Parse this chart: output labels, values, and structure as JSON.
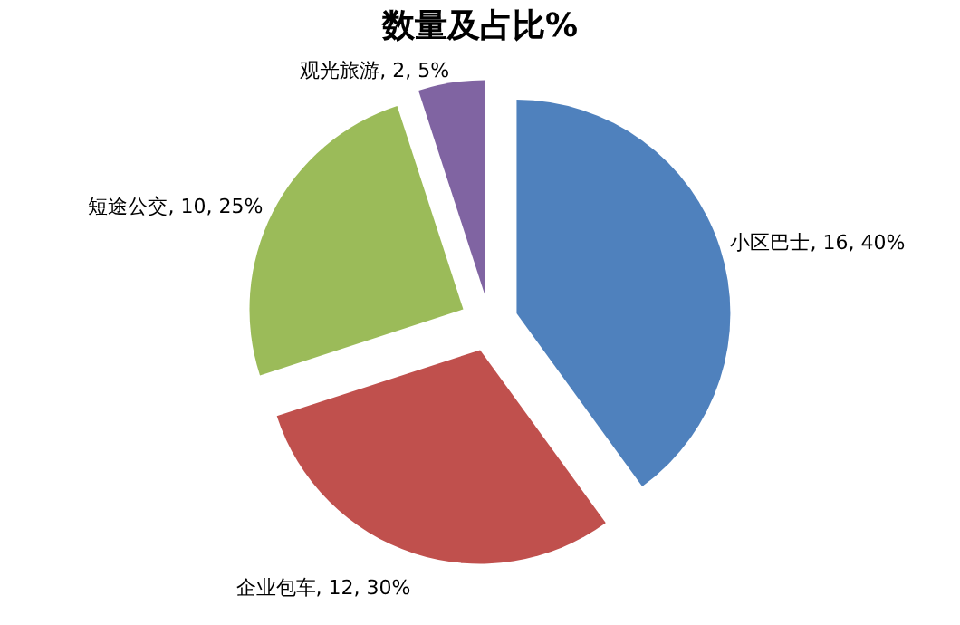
{
  "chart_data": {
    "type": "pie",
    "title": "数量及占比%",
    "categories": [
      "小区巴士",
      "企业包车",
      "短途公交",
      "观光旅游"
    ],
    "values": [
      16,
      12,
      10,
      2
    ],
    "colors": [
      "#4f81bd",
      "#c0504d",
      "#9bbb59",
      "#8064a2"
    ],
    "value_labels": [
      "16, 40%",
      "12, 30%",
      "10, 25%",
      "2, 5%"
    ],
    "legend": false
  }
}
